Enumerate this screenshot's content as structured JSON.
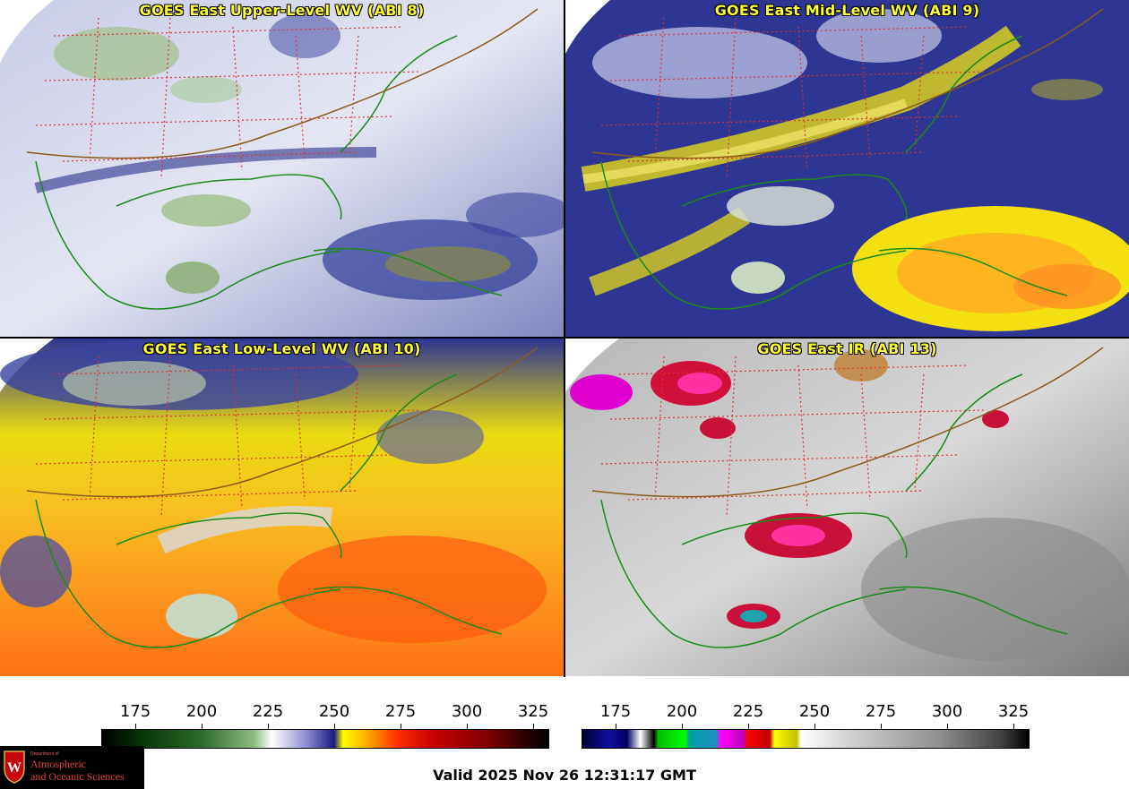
{
  "panels": [
    {
      "id": "upper",
      "title": "GOES East Upper-Level WV (ABI 8)"
    },
    {
      "id": "mid",
      "title": "GOES East Mid-Level WV (ABI 9)"
    },
    {
      "id": "low",
      "title": "GOES East Low-Level WV (ABI 10)"
    },
    {
      "id": "ir",
      "title": "GOES East IR (ABI 13)"
    }
  ],
  "colorbars": {
    "wv": {
      "ticks": [
        "175",
        "200",
        "225",
        "250",
        "275",
        "300",
        "325"
      ]
    },
    "ir": {
      "ticks": [
        "175",
        "200",
        "225",
        "250",
        "275",
        "300",
        "325"
      ]
    }
  },
  "footer": {
    "valid_time": "Valid 2025 Nov 26 12:31:17 GMT"
  },
  "logo": {
    "department": "Department of",
    "line1": "Atmospheric",
    "line2": "and Oceanic Sciences"
  },
  "colors": {
    "title_text": "#ffff33",
    "state_borders": "#e03030",
    "coastlines": "#1a8a1a",
    "country_borders": "#8b5a1a"
  }
}
